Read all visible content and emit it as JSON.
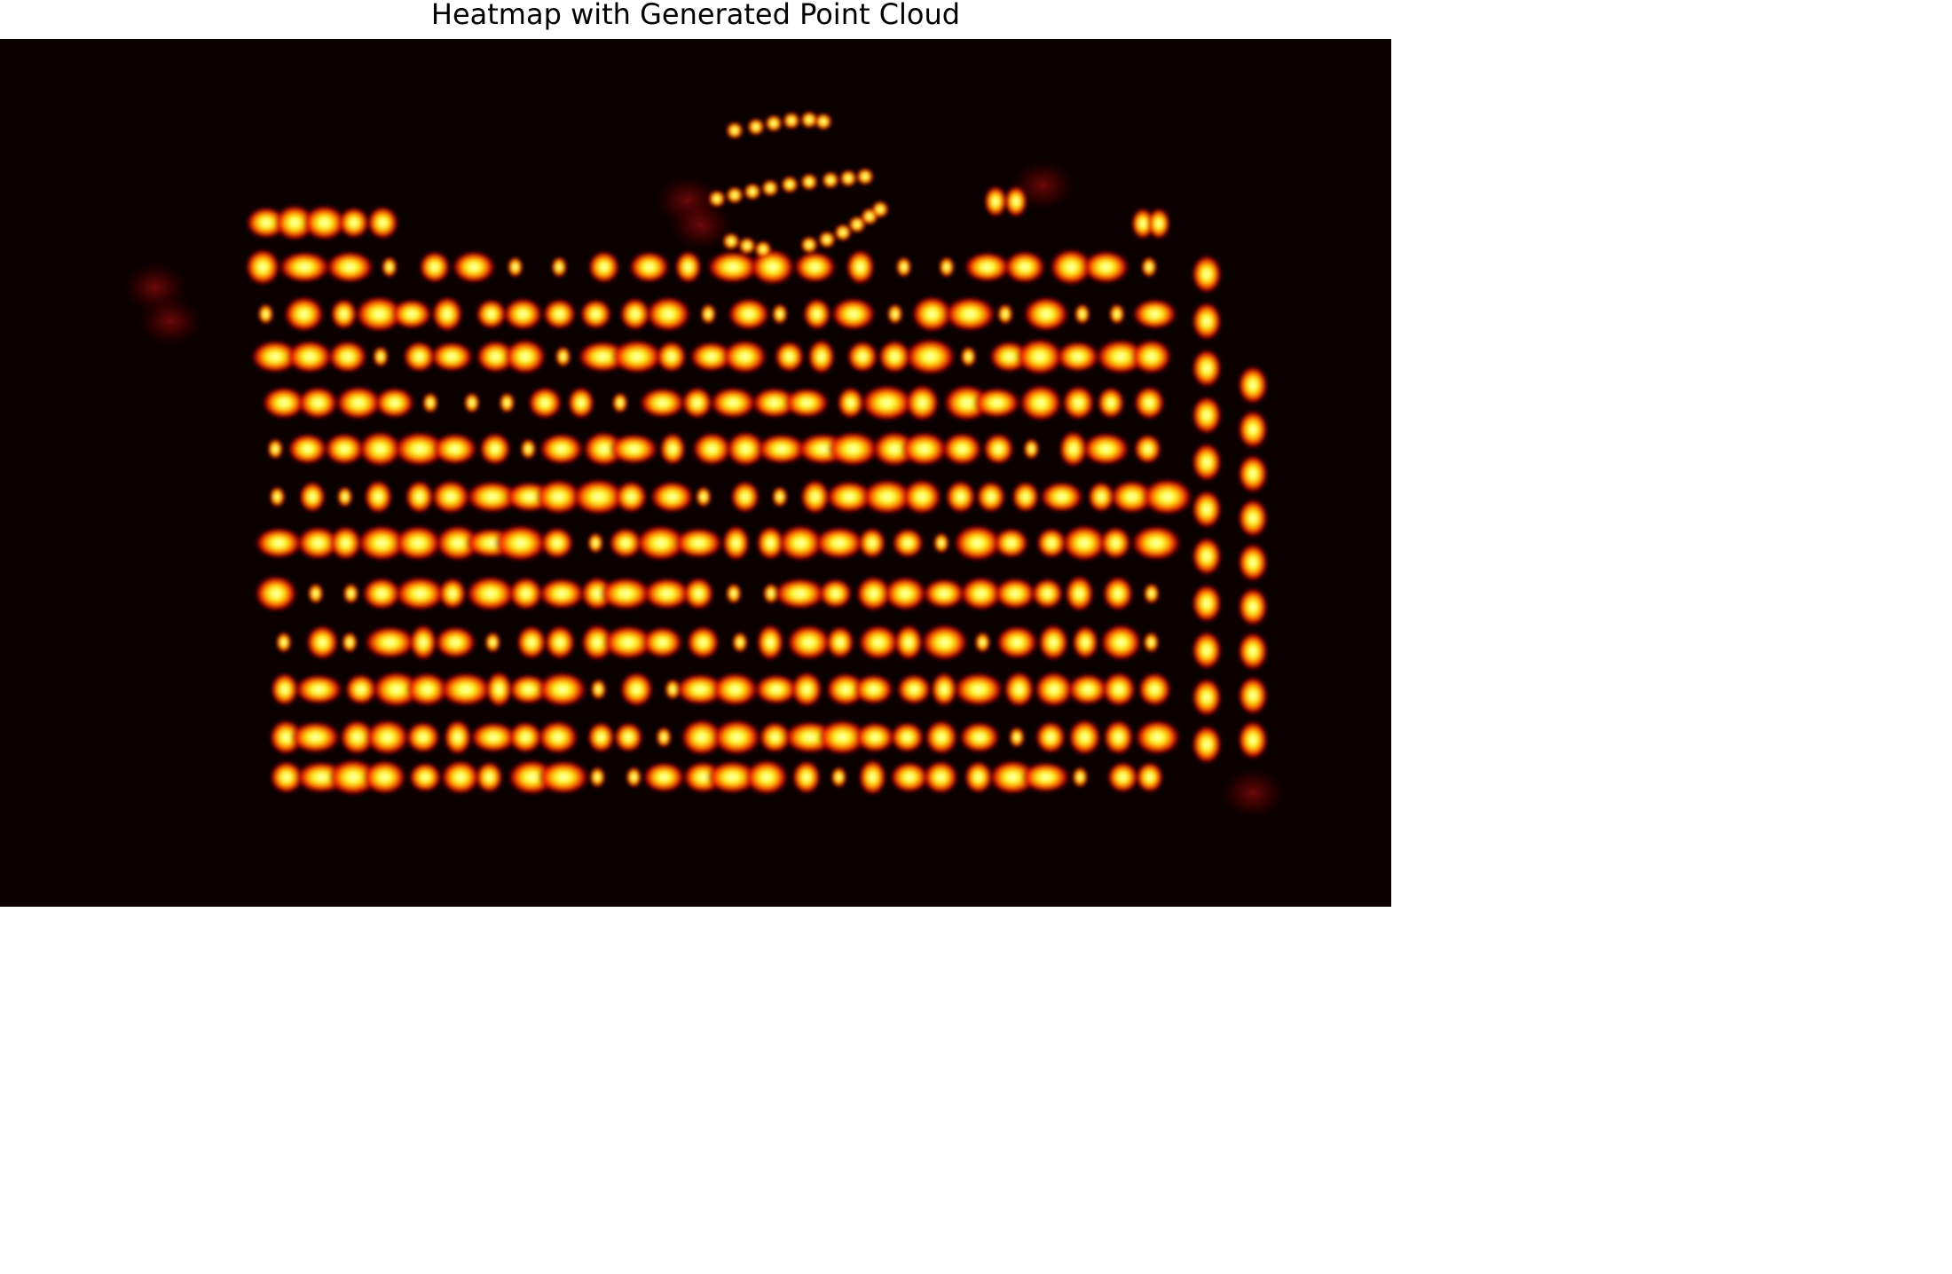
{
  "title": "Heatmap with Generated Point Cloud",
  "colormap": {
    "name": "hot",
    "background": "#0a0000",
    "stops": [
      "#0a0000",
      "#a00000",
      "#ff2a00",
      "#ffb000",
      "#ffff40"
    ]
  },
  "chart_data": {
    "type": "heatmap",
    "title": "Heatmap with Generated Point Cloud",
    "xlabel": "",
    "ylabel": "",
    "axes_visible": false,
    "grid": false,
    "legend": "none",
    "rows": [
      {
        "y": 207,
        "x_start": 300,
        "x_end": 430,
        "count": 5
      },
      {
        "y": 257,
        "x_start": 300,
        "x_end": 1300,
        "count": 22
      },
      {
        "y": 310,
        "x_start": 300,
        "x_end": 1300,
        "count": 25
      },
      {
        "y": 358,
        "x_start": 305,
        "x_end": 1300,
        "count": 25
      },
      {
        "y": 410,
        "x_start": 315,
        "x_end": 1300,
        "count": 24
      },
      {
        "y": 462,
        "x_start": 310,
        "x_end": 1290,
        "count": 25
      },
      {
        "y": 516,
        "x_start": 310,
        "x_end": 1320,
        "count": 26
      },
      {
        "y": 568,
        "x_start": 315,
        "x_end": 1300,
        "count": 26
      },
      {
        "y": 625,
        "x_start": 315,
        "x_end": 1300,
        "count": 26
      },
      {
        "y": 680,
        "x_start": 320,
        "x_end": 1300,
        "count": 26
      },
      {
        "y": 733,
        "x_start": 325,
        "x_end": 1300,
        "count": 26
      },
      {
        "y": 787,
        "x_start": 320,
        "x_end": 1300,
        "count": 26
      },
      {
        "y": 832,
        "x_start": 320,
        "x_end": 1300,
        "count": 26
      }
    ],
    "columns": [
      {
        "x": 1360,
        "y_start": 265,
        "y_end": 795,
        "count": 11
      },
      {
        "x": 1412,
        "y_start": 390,
        "y_end": 790,
        "count": 9
      }
    ],
    "arcs": [
      {
        "label": "",
        "cx": 905,
        "cy": 165,
        "points": [
          [
            828,
            103
          ],
          [
            852,
            99
          ],
          [
            872,
            95
          ],
          [
            892,
            92
          ],
          [
            912,
            91
          ],
          [
            928,
            93
          ]
        ]
      },
      {
        "label": "",
        "cx": 905,
        "cy": 165,
        "points": [
          [
            808,
            180
          ],
          [
            828,
            176
          ],
          [
            848,
            172
          ],
          [
            868,
            168
          ],
          [
            890,
            164
          ],
          [
            912,
            161
          ],
          [
            936,
            159
          ],
          [
            956,
            157
          ],
          [
            975,
            155
          ]
        ]
      },
      {
        "label": "",
        "cx": 905,
        "cy": 165,
        "points": [
          [
            824,
            228
          ],
          [
            842,
            233
          ],
          [
            860,
            237
          ],
          [
            912,
            232
          ],
          [
            932,
            226
          ],
          [
            950,
            218
          ],
          [
            966,
            209
          ],
          [
            980,
            200
          ],
          [
            992,
            192
          ]
        ]
      }
    ],
    "small_clusters": [
      {
        "x": 1122,
        "y": 183
      },
      {
        "x": 1145,
        "y": 183
      },
      {
        "x": 1288,
        "y": 208
      },
      {
        "x": 1306,
        "y": 208
      }
    ],
    "faint_regions": [
      {
        "x": 175,
        "y": 280
      },
      {
        "x": 192,
        "y": 318
      },
      {
        "x": 1175,
        "y": 165
      },
      {
        "x": 1412,
        "y": 850
      },
      {
        "x": 775,
        "y": 182
      },
      {
        "x": 790,
        "y": 210
      }
    ],
    "xlim": [
      0,
      1568
    ],
    "ylim": [
      0,
      978
    ]
  }
}
